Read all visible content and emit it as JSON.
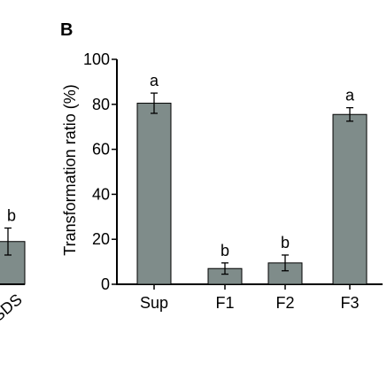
{
  "chart_data": [
    {
      "panel": "",
      "type": "bar",
      "categories": [
        "SDS"
      ],
      "values": [
        19
      ],
      "errors": [
        6
      ],
      "significance": [
        "b"
      ],
      "bar_color": "#7f8c8a",
      "partial": true
    },
    {
      "panel": "B",
      "type": "bar",
      "categories": [
        "Sup",
        "F1",
        "F2",
        "F3"
      ],
      "values": [
        80.5,
        7,
        9.5,
        75.5
      ],
      "errors": [
        4.5,
        2.5,
        3.5,
        3
      ],
      "significance": [
        "a",
        "b",
        "b",
        "a"
      ],
      "ylabel": "Transformation ratio (%)",
      "xlabel": "",
      "ylim": [
        0,
        100
      ],
      "yticks": [
        0,
        20,
        40,
        60,
        80,
        100
      ],
      "grid": false,
      "bar_color": "#7f8c8a"
    }
  ]
}
